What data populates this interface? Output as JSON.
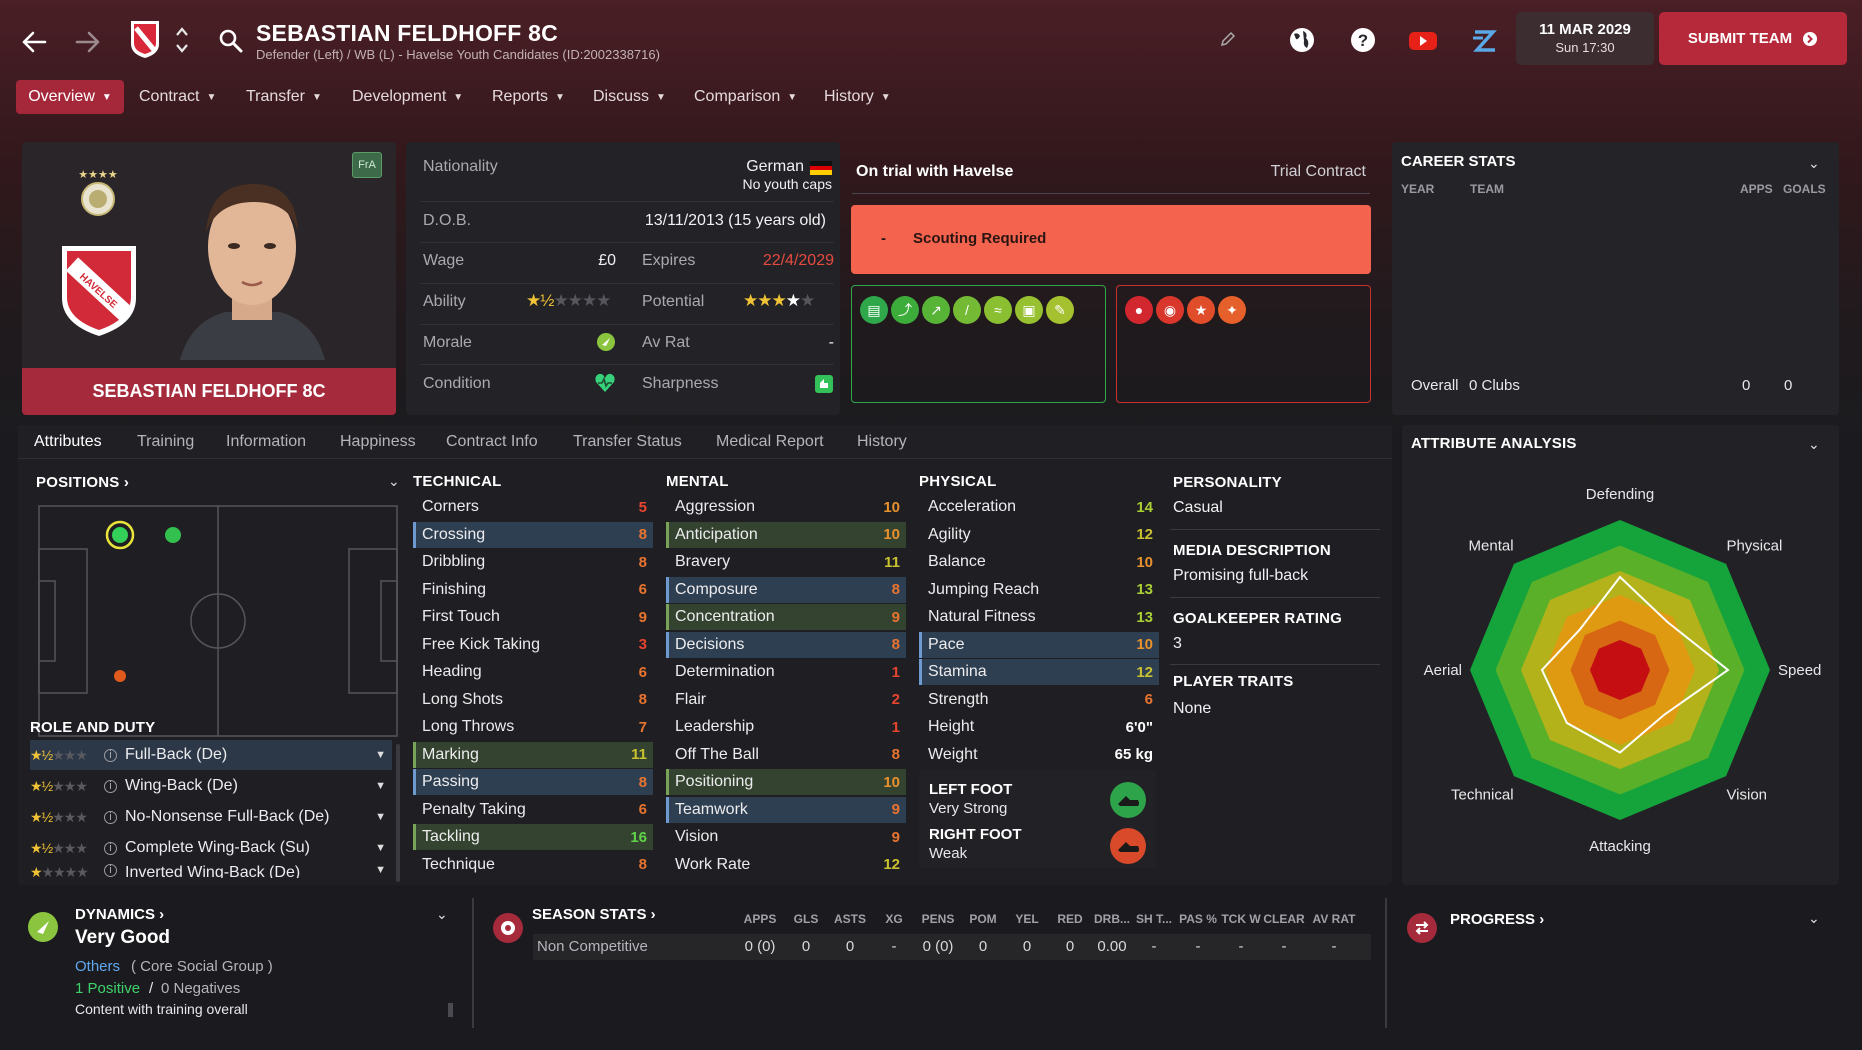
{
  "header": {
    "player_name": "SEBASTIAN FELDHOFF 8C",
    "subtitle": "Defender (Left) / WB (L) - Havelse Youth Candidates (ID:2002338716)",
    "date": "11 MAR 2029",
    "time": "Sun 17:30",
    "submit_label": "SUBMIT TEAM"
  },
  "nav": {
    "items": [
      "Overview",
      "Contract",
      "Transfer",
      "Development",
      "Reports",
      "Discuss",
      "Comparison",
      "History"
    ]
  },
  "card": {
    "badge": "FrA",
    "name": "SEBASTIAN FELDHOFF 8C",
    "club_badge_text": "TSV HAVELSE 1912"
  },
  "info": {
    "nationality_label": "Nationality",
    "nationality": "German",
    "youth_caps": "No youth caps",
    "dob_label": "D.O.B.",
    "dob": "13/11/2013 (15 years old)",
    "wage_label": "Wage",
    "wage": "£0",
    "expires_label": "Expires",
    "expires": "22/4/2029",
    "ability_label": "Ability",
    "ability_stars": 1.5,
    "potential_label": "Potential",
    "potential_stars": 3.5,
    "morale_label": "Morale",
    "avrat_label": "Av Rat",
    "avrat": "-",
    "condition_label": "Condition",
    "sharpness_label": "Sharpness"
  },
  "trial": {
    "title": "On trial with Havelse",
    "contract": "Trial Contract",
    "scouting_dash": "-",
    "scouting": "Scouting Required"
  },
  "career": {
    "title": "CAREER STATS",
    "col_year": "YEAR",
    "col_team": "TEAM",
    "col_apps": "APPS",
    "col_goals": "GOALS",
    "overall_label": "Overall",
    "overall_clubs": "0 Clubs",
    "apps": "0",
    "goals": "0"
  },
  "tabs": [
    "Attributes",
    "Training",
    "Information",
    "Happiness",
    "Contract Info",
    "Transfer Status",
    "Medical Report",
    "History"
  ],
  "positions_title": "POSITIONS",
  "role_title": "ROLE AND DUTY",
  "roles": [
    {
      "name": "Full-Back (De)",
      "stars": 1.5
    },
    {
      "name": "Wing-Back (De)",
      "stars": 1.5
    },
    {
      "name": "No-Nonsense Full-Back (De)",
      "stars": 1.5
    },
    {
      "name": "Complete Wing-Back (Su)",
      "stars": 1.5
    },
    {
      "name": "Inverted Wing-Back (De)",
      "stars": 1
    }
  ],
  "technical": {
    "title": "TECHNICAL",
    "rows": [
      {
        "n": "Corners",
        "v": "5",
        "c": "#e8452f",
        "h": ""
      },
      {
        "n": "Crossing",
        "v": "8",
        "c": "#e8742f",
        "h": "blue"
      },
      {
        "n": "Dribbling",
        "v": "8",
        "c": "#e8742f",
        "h": ""
      },
      {
        "n": "Finishing",
        "v": "6",
        "c": "#e8742f",
        "h": ""
      },
      {
        "n": "First Touch",
        "v": "9",
        "c": "#e8742f",
        "h": ""
      },
      {
        "n": "Free Kick Taking",
        "v": "3",
        "c": "#e8452f",
        "h": ""
      },
      {
        "n": "Heading",
        "v": "6",
        "c": "#e8742f",
        "h": ""
      },
      {
        "n": "Long Shots",
        "v": "8",
        "c": "#e8742f",
        "h": ""
      },
      {
        "n": "Long Throws",
        "v": "7",
        "c": "#e8742f",
        "h": ""
      },
      {
        "n": "Marking",
        "v": "11",
        "c": "#c9c12f",
        "h": "green"
      },
      {
        "n": "Passing",
        "v": "8",
        "c": "#e8742f",
        "h": "blue"
      },
      {
        "n": "Penalty Taking",
        "v": "6",
        "c": "#e8742f",
        "h": ""
      },
      {
        "n": "Tackling",
        "v": "16",
        "c": "#5fd24a",
        "h": "green"
      },
      {
        "n": "Technique",
        "v": "8",
        "c": "#e8742f",
        "h": ""
      }
    ]
  },
  "mental": {
    "title": "MENTAL",
    "rows": [
      {
        "n": "Aggression",
        "v": "10",
        "c": "#e8912f",
        "h": ""
      },
      {
        "n": "Anticipation",
        "v": "10",
        "c": "#e8912f",
        "h": "green"
      },
      {
        "n": "Bravery",
        "v": "11",
        "c": "#c9c12f",
        "h": ""
      },
      {
        "n": "Composure",
        "v": "8",
        "c": "#e8742f",
        "h": "blue"
      },
      {
        "n": "Concentration",
        "v": "9",
        "c": "#e8742f",
        "h": "green"
      },
      {
        "n": "Decisions",
        "v": "8",
        "c": "#e8742f",
        "h": "blue"
      },
      {
        "n": "Determination",
        "v": "1",
        "c": "#e8452f",
        "h": ""
      },
      {
        "n": "Flair",
        "v": "2",
        "c": "#e8452f",
        "h": ""
      },
      {
        "n": "Leadership",
        "v": "1",
        "c": "#e8452f",
        "h": ""
      },
      {
        "n": "Off The Ball",
        "v": "8",
        "c": "#e8742f",
        "h": ""
      },
      {
        "n": "Positioning",
        "v": "10",
        "c": "#e8912f",
        "h": "green"
      },
      {
        "n": "Teamwork",
        "v": "9",
        "c": "#e8742f",
        "h": "blue"
      },
      {
        "n": "Vision",
        "v": "9",
        "c": "#e8742f",
        "h": ""
      },
      {
        "n": "Work Rate",
        "v": "12",
        "c": "#c9c12f",
        "h": ""
      }
    ]
  },
  "physical": {
    "title": "PHYSICAL",
    "rows": [
      {
        "n": "Acceleration",
        "v": "14",
        "c": "#a9cf33",
        "h": ""
      },
      {
        "n": "Agility",
        "v": "12",
        "c": "#c9c12f",
        "h": ""
      },
      {
        "n": "Balance",
        "v": "10",
        "c": "#e8912f",
        "h": ""
      },
      {
        "n": "Jumping Reach",
        "v": "13",
        "c": "#a9cf33",
        "h": ""
      },
      {
        "n": "Natural Fitness",
        "v": "13",
        "c": "#a9cf33",
        "h": ""
      },
      {
        "n": "Pace",
        "v": "10",
        "c": "#e8912f",
        "h": "blue"
      },
      {
        "n": "Stamina",
        "v": "12",
        "c": "#c9c12f",
        "h": "blue"
      },
      {
        "n": "Strength",
        "v": "6",
        "c": "#e8742f",
        "h": ""
      },
      {
        "n": "Height",
        "v": "6'0\"",
        "c": "#ffffff",
        "h": ""
      },
      {
        "n": "Weight",
        "v": "65 kg",
        "c": "#ffffff",
        "h": ""
      }
    ],
    "left_foot_label": "LEFT FOOT",
    "left_foot": "Very Strong",
    "right_foot_label": "RIGHT FOOT",
    "right_foot": "Weak"
  },
  "personality": {
    "personality_title": "PERSONALITY",
    "personality": "Casual",
    "media_title": "MEDIA DESCRIPTION",
    "media": "Promising full-back",
    "gk_title": "GOALKEEPER RATING",
    "gk": "3",
    "traits_title": "PLAYER TRAITS",
    "traits": "None"
  },
  "analysis": {
    "title": "ATTRIBUTE ANALYSIS",
    "labels": [
      "Defending",
      "Physical",
      "Speed",
      "Vision",
      "Attacking",
      "Technical",
      "Aerial",
      "Mental"
    ],
    "values": [
      0.62,
      0.45,
      0.72,
      0.42,
      0.55,
      0.5,
      0.52,
      0.38
    ]
  },
  "dynamics": {
    "title": "DYNAMICS",
    "status": "Very Good",
    "group": "Others",
    "group_type": "( Core Social Group )",
    "positives": "1 Positive",
    "sep": "/",
    "negatives": "0 Negatives",
    "note": "Content with training overall"
  },
  "season": {
    "title": "SEASON STATS",
    "cols": [
      "APPS",
      "GLS",
      "ASTS",
      "XG",
      "PENS",
      "POM",
      "YEL",
      "RED",
      "DRB...",
      "SH T...",
      "PAS %",
      "TCK W",
      "CLEAR",
      "AV RAT"
    ],
    "row_label": "Non Competitive",
    "row": [
      "0 (0)",
      "0",
      "0",
      "-",
      "0 (0)",
      "0",
      "0",
      "0",
      "0.00",
      "-",
      "-",
      "-",
      "-",
      "-"
    ]
  },
  "progress": {
    "title": "PROGRESS"
  },
  "colors": {
    "accent": "#b6293a",
    "scouting": "#f4634d",
    "positive_border": "#2fa84a",
    "negative_border": "#c8312f"
  }
}
